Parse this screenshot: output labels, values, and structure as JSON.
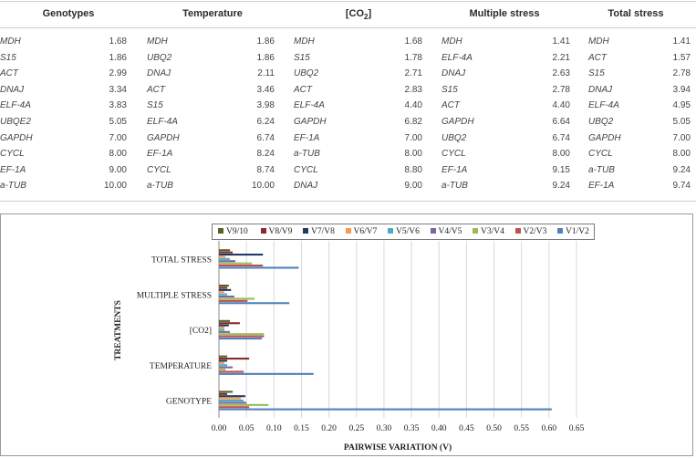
{
  "table": {
    "columns": [
      {
        "header": "Genotypes",
        "rows": [
          [
            "MDH",
            "1.68"
          ],
          [
            "S15",
            "1.86"
          ],
          [
            "ACT",
            "2.99"
          ],
          [
            "DNAJ",
            "3.34"
          ],
          [
            "ELF-4A",
            "3.83"
          ],
          [
            "UBQE2",
            "5.05"
          ],
          [
            "GAPDH",
            "7.00"
          ],
          [
            "CYCL",
            "8.00"
          ],
          [
            "EF-1A",
            "9.00"
          ],
          [
            "a-TUB",
            "10.00"
          ]
        ]
      },
      {
        "header": "Temperature",
        "rows": [
          [
            "MDH",
            "1.86"
          ],
          [
            "UBQ2",
            "1.86"
          ],
          [
            "DNAJ",
            "2.11"
          ],
          [
            "ACT",
            "3.46"
          ],
          [
            "S15",
            "3.98"
          ],
          [
            "ELF-4A",
            "6.24"
          ],
          [
            "GAPDH",
            "6.74"
          ],
          [
            "EF-1A",
            "8.24"
          ],
          [
            "CYCL",
            "8.74"
          ],
          [
            "a-TUB",
            "10.00"
          ]
        ]
      },
      {
        "header": "[CO",
        "header_sub": "2",
        "header_end": "]",
        "rows": [
          [
            "MDH",
            "1.68"
          ],
          [
            "S15",
            "1.78"
          ],
          [
            "UBQ2",
            "2.71"
          ],
          [
            "ACT",
            "2.83"
          ],
          [
            "ELF-4A",
            "4.40"
          ],
          [
            "GAPDH",
            "6.82"
          ],
          [
            "EF-1A",
            "7.00"
          ],
          [
            "a-TUB",
            "8.00"
          ],
          [
            "CYCL",
            "8.80"
          ],
          [
            "DNAJ",
            "9.00"
          ]
        ]
      },
      {
        "header": "Multiple stress",
        "rows": [
          [
            "MDH",
            "1.41"
          ],
          [
            "ELF-4A",
            "2.21"
          ],
          [
            "DNAJ",
            "2.63"
          ],
          [
            "S15",
            "2.78"
          ],
          [
            "ACT",
            "4.40"
          ],
          [
            "GAPDH",
            "6.64"
          ],
          [
            "UBQ2",
            "6.74"
          ],
          [
            "CYCL",
            "8.00"
          ],
          [
            "EF-1A",
            "9.15"
          ],
          [
            "a-TUB",
            "9.24"
          ]
        ]
      },
      {
        "header": "Total stress",
        "rows": [
          [
            "MDH",
            "1.41"
          ],
          [
            "ACT",
            "1.57"
          ],
          [
            "S15",
            "2.78"
          ],
          [
            "DNAJ",
            "3.94"
          ],
          [
            "ELF-4A",
            "4.95"
          ],
          [
            "UBQ2",
            "5.05"
          ],
          [
            "GAPDH",
            "7.00"
          ],
          [
            "CYCL",
            "8.00"
          ],
          [
            "a-TUB",
            "9.24"
          ],
          [
            "EF-1A",
            "9.74"
          ]
        ]
      }
    ]
  },
  "chart_data": {
    "type": "bar",
    "orientation": "horizontal",
    "categories": [
      "GENOTYPE",
      "TEMPERATURE",
      "[CO2]",
      "MULTIPLE STRESS",
      "TOTAL STRESS"
    ],
    "xlabel": "PAIRWISE VARIATION (V)",
    "ylabel": "TREATMENTS",
    "xlim": [
      0,
      0.65
    ],
    "xticks": [
      "0.00",
      "0.05",
      "0.10",
      "0.15",
      "0.20",
      "0.25",
      "0.30",
      "0.35",
      "0.40",
      "0.45",
      "0.50",
      "0.55",
      "0.60",
      "0.65"
    ],
    "grid": "vertical",
    "legend_position": "top",
    "series": [
      {
        "name": "V9/10",
        "color": "#4f6228",
        "values": [
          0.025,
          0.015,
          0.02,
          0.018,
          0.02
        ]
      },
      {
        "name": "V8/V9",
        "color": "#8b2a2a",
        "values": [
          0.015,
          0.055,
          0.038,
          0.015,
          0.025
        ]
      },
      {
        "name": "V7/V8",
        "color": "#1f3864",
        "values": [
          0.048,
          0.015,
          0.018,
          0.022,
          0.08
        ]
      },
      {
        "name": "V6/V7",
        "color": "#f39c4a",
        "values": [
          0.04,
          0.01,
          0.01,
          0.01,
          0.012
        ]
      },
      {
        "name": "V5/V6",
        "color": "#4bacc6",
        "values": [
          0.045,
          0.015,
          0.01,
          0.015,
          0.02
        ]
      },
      {
        "name": "V4/V5",
        "color": "#7f64a2",
        "values": [
          0.05,
          0.025,
          0.02,
          0.028,
          0.03
        ]
      },
      {
        "name": "V3/V4",
        "color": "#9bbb59",
        "values": [
          0.09,
          0.012,
          0.082,
          0.065,
          0.06
        ]
      },
      {
        "name": "V2/V3",
        "color": "#c0504d",
        "values": [
          0.055,
          0.045,
          0.082,
          0.052,
          0.08
        ]
      },
      {
        "name": "V1/V2",
        "color": "#4f81bd",
        "values": [
          0.605,
          0.172,
          0.078,
          0.128,
          0.145
        ]
      }
    ]
  }
}
